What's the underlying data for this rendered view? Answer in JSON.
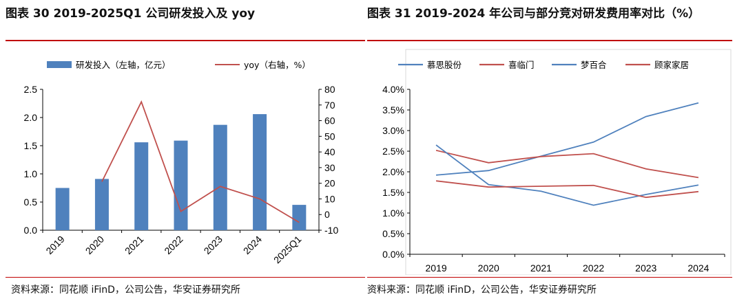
{
  "left": {
    "title": "图表 30 2019-2025Q1 公司研发投入及 yoy",
    "source": "资料来源：同花顺 iFinD，公司公告，华安证券研究所",
    "colors": {
      "bar": "#4f81bd",
      "line": "#c0504d"
    }
  },
  "right": {
    "title": "图表  31  2019-2024  年公司与部分竞对研发费用率对比（%）",
    "source": "资料来源：同花顺 iFinD，公司公告，华安证券研究所",
    "colors": {
      "慕思股份": "#4f81bd",
      "喜临门": "#c0504d",
      "梦百合": "#4f81bd",
      "顾家家居": "#c0504d"
    }
  },
  "chart_data": [
    {
      "type": "bar",
      "categories": [
        "2019",
        "2020",
        "2021",
        "2022",
        "2023",
        "2024",
        "2025Q1"
      ],
      "series": [
        {
          "name": "研发投入（左轴，亿元）",
          "axis": "left",
          "kind": "bar",
          "values": [
            0.75,
            0.91,
            1.56,
            1.59,
            1.87,
            2.06,
            0.45
          ]
        },
        {
          "name": "yoy（右轴，%）",
          "axis": "right",
          "kind": "line",
          "values": [
            null,
            21,
            72,
            2,
            18,
            10,
            -5
          ]
        }
      ],
      "ylim_left": [
        0,
        2.5
      ],
      "yticks_left": [
        "0.0",
        "0.5",
        "1.0",
        "1.5",
        "2.0",
        "2.5"
      ],
      "ylim_right": [
        -10,
        80
      ],
      "yticks_right": [
        "-10",
        "0",
        "10",
        "20",
        "30",
        "40",
        "50",
        "60",
        "70",
        "80"
      ],
      "legend_position": "top",
      "grid": false
    },
    {
      "type": "line",
      "categories": [
        "2019",
        "2020",
        "2021",
        "2022",
        "2023",
        "2024"
      ],
      "series": [
        {
          "name": "慕思股份",
          "values": [
            1.92,
            2.03,
            2.38,
            2.72,
            3.34,
            3.67
          ]
        },
        {
          "name": "喜临门",
          "values": [
            2.52,
            2.22,
            2.37,
            2.44,
            2.07,
            1.86
          ]
        },
        {
          "name": "梦百合",
          "values": [
            2.65,
            1.69,
            1.53,
            1.19,
            1.45,
            1.68
          ]
        },
        {
          "name": "顾家家居",
          "values": [
            1.78,
            1.63,
            1.65,
            1.67,
            1.38,
            1.52
          ]
        }
      ],
      "ylim": [
        0,
        4
      ],
      "yticks": [
        "0.0%",
        "0.5%",
        "1.0%",
        "1.5%",
        "2.0%",
        "2.5%",
        "3.0%",
        "3.5%",
        "4.0%"
      ],
      "legend_position": "top",
      "grid": false
    }
  ]
}
